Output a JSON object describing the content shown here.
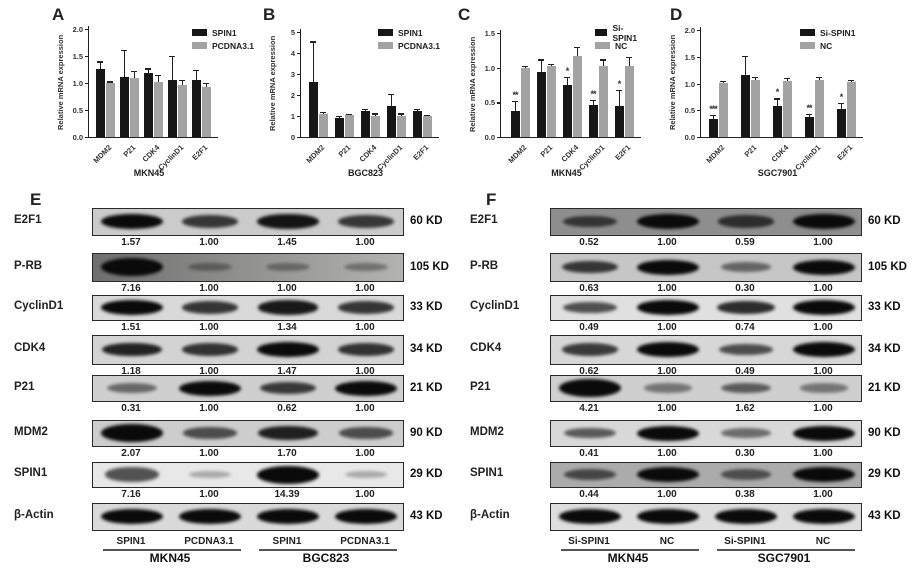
{
  "colors": {
    "bar_black": "#161616",
    "bar_gray": "#a3a3a3",
    "band": "#0a0a0a",
    "background": "#ffffff"
  },
  "chart_data": [
    {
      "type": "bar",
      "panel": "A",
      "title": "",
      "ylabel": "Relative mRNA expression",
      "xlabel": "MKN45",
      "ylim": [
        0,
        2.0
      ],
      "ytick_labels": [
        "0.0",
        "0.5",
        "1.0",
        "1.5",
        "2.0"
      ],
      "grid": false,
      "legend_position": "top-right",
      "categories": [
        "MDM2",
        "P21",
        "CDK4",
        "CyclinD1",
        "E2F1"
      ],
      "series": [
        {
          "name": "SPIN1",
          "color": "#161616",
          "values": [
            1.26,
            1.12,
            1.18,
            1.05,
            1.06
          ],
          "errors": [
            0.14,
            0.49,
            0.09,
            0.45,
            0.18
          ],
          "sig": [
            "",
            "",
            "",
            "",
            ""
          ]
        },
        {
          "name": "PCDNA3.1",
          "color": "#a3a3a3",
          "values": [
            1.0,
            1.1,
            1.01,
            0.96,
            0.93
          ],
          "errors": [
            0.03,
            0.12,
            0.14,
            0.09,
            0.07
          ],
          "sig": [
            "",
            "",
            "",
            "",
            ""
          ]
        }
      ]
    },
    {
      "type": "bar",
      "panel": "B",
      "title": "",
      "ylabel": "Relative mRNA expression",
      "xlabel": "BGC823",
      "ylim": [
        0,
        5
      ],
      "ytick_labels": [
        "0",
        "1",
        "2",
        "3",
        "4",
        "5"
      ],
      "grid": false,
      "legend_position": "top-right",
      "categories": [
        "MDM2",
        "P21",
        "CDK4",
        "CyclinD1",
        "E2F1"
      ],
      "series": [
        {
          "name": "SPIN1",
          "color": "#161616",
          "values": [
            2.6,
            0.9,
            1.22,
            1.47,
            1.22
          ],
          "errors": [
            1.95,
            0.1,
            0.1,
            0.6,
            0.1
          ],
          "sig": [
            "",
            "",
            "",
            "",
            ""
          ]
        },
        {
          "name": "PCDNA3.1",
          "color": "#a3a3a3",
          "values": [
            1.08,
            1.05,
            1.02,
            1.02,
            1.0
          ],
          "errors": [
            0.1,
            0.06,
            0.1,
            0.1,
            0.05
          ],
          "sig": [
            "",
            "",
            "",
            "",
            ""
          ]
        }
      ]
    },
    {
      "type": "bar",
      "panel": "C",
      "title": "",
      "ylabel": "Relative mRNA expression",
      "xlabel": "MKN45",
      "ylim": [
        0,
        1.5
      ],
      "ytick_labels": [
        "0.0",
        "0.5",
        "1.0",
        "1.5"
      ],
      "grid": false,
      "legend_position": "top-right",
      "categories": [
        "MDM2",
        "P21",
        "CDK4",
        "CyclinD1",
        "E2F1"
      ],
      "series": [
        {
          "name": "Si-SPIN1",
          "color": "#161616",
          "values": [
            0.38,
            0.94,
            0.75,
            0.46,
            0.44
          ],
          "errors": [
            0.14,
            0.18,
            0.12,
            0.07,
            0.24
          ],
          "sig": [
            "**",
            "",
            "*",
            "**",
            "*"
          ]
        },
        {
          "name": "NC",
          "color": "#a3a3a3",
          "values": [
            0.99,
            1.03,
            1.17,
            1.02,
            1.03
          ],
          "errors": [
            0.04,
            0.03,
            0.13,
            0.1,
            0.12
          ],
          "sig": [
            "",
            "",
            "",
            "",
            ""
          ]
        }
      ]
    },
    {
      "type": "bar",
      "panel": "D",
      "title": "",
      "ylabel": "Relative mRNA expression",
      "xlabel": "SGC7901",
      "ylim": [
        0,
        2.0
      ],
      "ytick_labels": [
        "0.0",
        "0.5",
        "1.0",
        "1.5",
        "2.0"
      ],
      "grid": false,
      "legend_position": "top-right",
      "categories": [
        "MDM2",
        "P21",
        "CDK4",
        "CyclinD1",
        "E2F1"
      ],
      "series": [
        {
          "name": "Si-SPIN1",
          "color": "#161616",
          "values": [
            0.33,
            1.15,
            0.58,
            0.38,
            0.53
          ],
          "errors": [
            0.09,
            0.37,
            0.14,
            0.05,
            0.1
          ],
          "sig": [
            "***",
            "",
            "*",
            "**",
            "*"
          ]
        },
        {
          "name": "NC",
          "color": "#a3a3a3",
          "values": [
            1.01,
            1.06,
            1.05,
            1.07,
            1.02
          ],
          "errors": [
            0.04,
            0.06,
            0.06,
            0.05,
            0.05
          ],
          "sig": [
            "",
            "",
            "",
            "",
            ""
          ]
        }
      ]
    }
  ],
  "blot_panels": [
    {
      "panel": "E",
      "lane_labels": [
        "SPIN1",
        "PCDNA3.1",
        "SPIN1",
        "PCDNA3.1"
      ],
      "group_labels": [
        "MKN45",
        "BGC823"
      ],
      "rows": [
        {
          "protein": "E2F1",
          "mw": "60 KD",
          "values": [
            "1.57",
            "1.00",
            "1.45",
            "1.00"
          ],
          "bg": "#cbcbcb"
        },
        {
          "protein": "P-RB",
          "mw": "105 KD",
          "values": [
            "7.16",
            "1.00",
            "1.00",
            "1.00"
          ],
          "bg": "#9a9a9a",
          "bg_gradient": [
            "#6f6f6f",
            "#b3b3b1"
          ]
        },
        {
          "protein": "CyclinD1",
          "mw": "33 KD",
          "values": [
            "1.51",
            "1.00",
            "1.34",
            "1.00"
          ],
          "bg": "#d9d9d9"
        },
        {
          "protein": "CDK4",
          "mw": "34 KD",
          "values": [
            "1.18",
            "1.00",
            "1.47",
            "1.00"
          ],
          "bg": "#d3d3d3"
        },
        {
          "protein": "P21",
          "mw": "21 KD",
          "values": [
            "0.31",
            "1.00",
            "0.62",
            "1.00"
          ],
          "bg": "#cfcfcf"
        },
        {
          "protein": "MDM2",
          "mw": "90 KD",
          "values": [
            "2.07",
            "1.00",
            "1.70",
            "1.00"
          ],
          "bg": "#cdcdcd"
        },
        {
          "protein": "SPIN1",
          "mw": "29 KD",
          "values": [
            "7.16",
            "1.00",
            "14.39",
            "1.00"
          ],
          "bg": "#e8e8e8"
        },
        {
          "protein": "β-Actin",
          "mw": "43 KD",
          "values": null,
          "bg": "#dadada"
        }
      ]
    },
    {
      "panel": "F",
      "lane_labels": [
        "Si-SPIN1",
        "NC",
        "Si-SPIN1",
        "NC"
      ],
      "group_labels": [
        "MKN45",
        "SGC7901"
      ],
      "rows": [
        {
          "protein": "E2F1",
          "mw": "60 KD",
          "values": [
            "0.52",
            "1.00",
            "0.59",
            "1.00"
          ],
          "bg": "#8e8e8e"
        },
        {
          "protein": "P-RB",
          "mw": "105 KD",
          "values": [
            "0.63",
            "1.00",
            "0.30",
            "1.00"
          ],
          "bg": "#c6c6c6"
        },
        {
          "protein": "CyclinD1",
          "mw": "33 KD",
          "values": [
            "0.49",
            "1.00",
            "0.74",
            "1.00"
          ],
          "bg": "#e0e0e0"
        },
        {
          "protein": "CDK4",
          "mw": "34 KD",
          "values": [
            "0.62",
            "1.00",
            "0.49",
            "1.00"
          ],
          "bg": "#d7d7d7"
        },
        {
          "protein": "P21",
          "mw": "21 KD",
          "values": [
            "4.21",
            "1.00",
            "1.62",
            "1.00"
          ],
          "bg": "#cfcfcf"
        },
        {
          "protein": "MDM2",
          "mw": "90 KD",
          "values": [
            "0.41",
            "1.00",
            "0.30",
            "1.00"
          ],
          "bg": "#d8d8d8"
        },
        {
          "protein": "SPIN1",
          "mw": "29 KD",
          "values": [
            "0.44",
            "1.00",
            "0.38",
            "1.00"
          ],
          "bg": "#ababab"
        },
        {
          "protein": "β-Actin",
          "mw": "43 KD",
          "values": null,
          "bg": "#dedede"
        }
      ]
    }
  ]
}
